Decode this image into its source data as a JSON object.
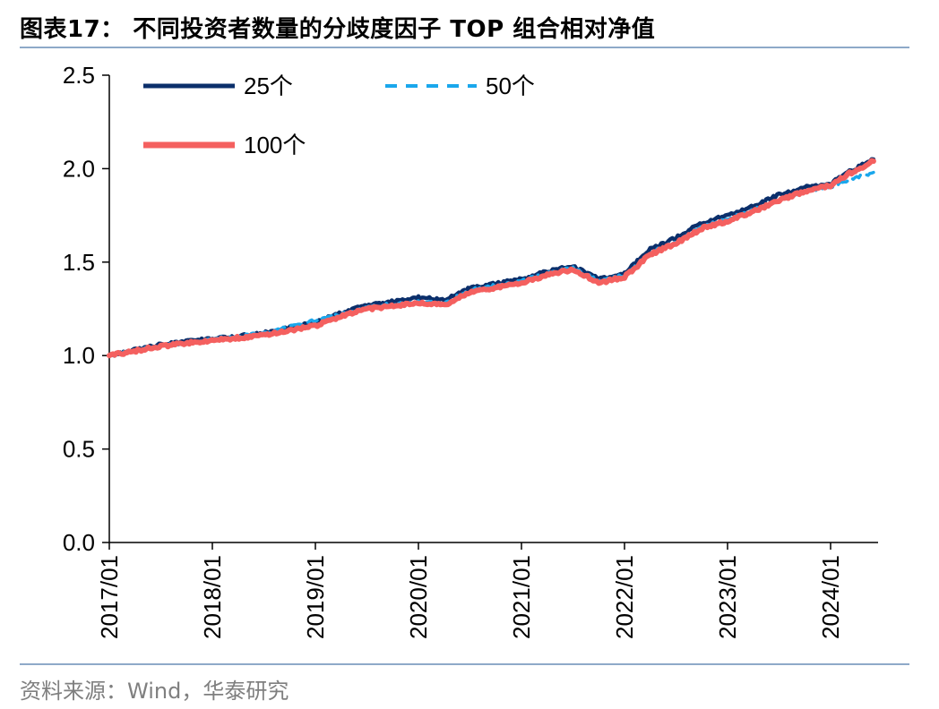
{
  "title": "图表17：  不同投资者数量的分歧度因子 TOP 组合相对净值",
  "source": "资料来源：Wind，华泰研究",
  "chart_data": {
    "type": "line",
    "title": "图表17：  不同投资者数量的分歧度因子 TOP 组合相对净值",
    "xlabel": "",
    "ylabel": "",
    "ylim": [
      0,
      2.5
    ],
    "yticks": [
      "0.0",
      "0.5",
      "1.0",
      "1.5",
      "2.0",
      "2.5"
    ],
    "xticks": [
      "2017/01",
      "2018/01",
      "2019/01",
      "2020/01",
      "2021/01",
      "2022/01",
      "2023/01",
      "2024/01"
    ],
    "x_range": [
      "2017/01",
      "2024/06"
    ],
    "grid": false,
    "legend_position": "top-left",
    "x": [
      "2017/01",
      "2017/07",
      "2018/01",
      "2018/07",
      "2019/01",
      "2019/04",
      "2019/07",
      "2020/01",
      "2020/04",
      "2020/07",
      "2021/01",
      "2021/04",
      "2021/07",
      "2021/10",
      "2022/01",
      "2022/04",
      "2022/07",
      "2022/10",
      "2023/01",
      "2023/04",
      "2023/07",
      "2023/10",
      "2024/01",
      "2024/02",
      "2024/03",
      "2024/06"
    ],
    "series": [
      {
        "name": "25个",
        "color": "#0b2f6b",
        "style": "solid",
        "values": [
          1.0,
          1.06,
          1.09,
          1.12,
          1.18,
          1.23,
          1.27,
          1.31,
          1.3,
          1.36,
          1.41,
          1.45,
          1.48,
          1.41,
          1.44,
          1.57,
          1.63,
          1.71,
          1.75,
          1.8,
          1.86,
          1.9,
          1.92,
          1.95,
          1.98,
          2.05
        ]
      },
      {
        "name": "50个",
        "color": "#1aa7ec",
        "style": "dashed",
        "values": [
          1.0,
          1.05,
          1.09,
          1.12,
          1.19,
          1.22,
          1.26,
          1.29,
          1.28,
          1.35,
          1.4,
          1.44,
          1.47,
          1.4,
          1.43,
          1.55,
          1.61,
          1.69,
          1.73,
          1.78,
          1.83,
          1.88,
          1.9,
          1.92,
          1.94,
          1.98
        ]
      },
      {
        "name": "100个",
        "color": "#f4605f",
        "style": "solid",
        "values": [
          1.0,
          1.05,
          1.08,
          1.11,
          1.16,
          1.21,
          1.25,
          1.28,
          1.27,
          1.34,
          1.39,
          1.43,
          1.46,
          1.39,
          1.42,
          1.54,
          1.6,
          1.68,
          1.72,
          1.77,
          1.83,
          1.88,
          1.91,
          1.94,
          1.97,
          2.04
        ]
      }
    ]
  }
}
